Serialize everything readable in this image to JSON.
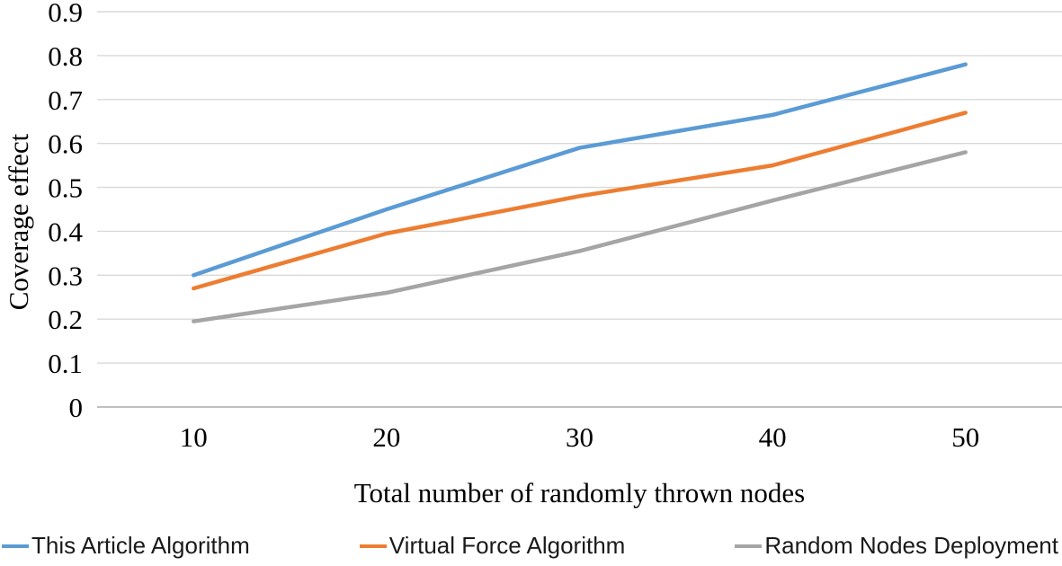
{
  "chart_data": {
    "type": "line",
    "title": "",
    "xlabel": "Total number of randomly thrown nodes",
    "ylabel": "Coverage effect",
    "x": [
      10,
      20,
      30,
      40,
      50
    ],
    "xtick_labels": [
      "10",
      "20",
      "30",
      "40",
      "50"
    ],
    "series": [
      {
        "name": "This Article Algorithm",
        "color": "#5B9BD5",
        "values": [
          0.3,
          0.45,
          0.59,
          0.665,
          0.78
        ]
      },
      {
        "name": "Virtual Force Algorithm",
        "color": "#ED7D31",
        "values": [
          0.27,
          0.395,
          0.48,
          0.55,
          0.67
        ]
      },
      {
        "name": "Random Nodes Deployment",
        "color": "#A5A5A5",
        "values": [
          0.195,
          0.26,
          0.355,
          0.47,
          0.58
        ]
      }
    ],
    "ylim": [
      0,
      0.9
    ],
    "yticks": [
      0,
      0.1,
      0.2,
      0.3,
      0.4,
      0.5,
      0.6,
      0.7,
      0.8,
      0.9
    ],
    "ytick_labels": [
      "0",
      "0.1",
      "0.2",
      "0.3",
      "0.4",
      "0.5",
      "0.6",
      "0.7",
      "0.8",
      "0.9"
    ],
    "grid": true,
    "grid_color": "#D9D9D9",
    "axis_line_color": "#BFBFBF",
    "legend_position": "bottom",
    "background": "#FFFFFF"
  }
}
